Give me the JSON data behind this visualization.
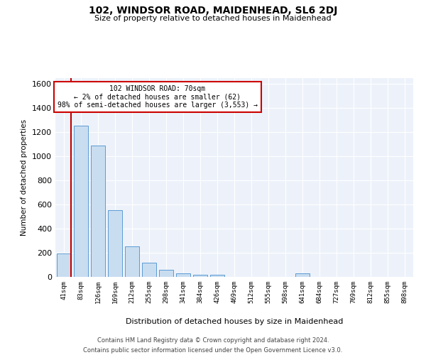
{
  "title": "102, WINDSOR ROAD, MAIDENHEAD, SL6 2DJ",
  "subtitle": "Size of property relative to detached houses in Maidenhead",
  "xlabel": "Distribution of detached houses by size in Maidenhead",
  "ylabel": "Number of detached properties",
  "footer_line1": "Contains HM Land Registry data © Crown copyright and database right 2024.",
  "footer_line2": "Contains public sector information licensed under the Open Government Licence v3.0.",
  "annotation_line1": "102 WINDSOR ROAD: 70sqm",
  "annotation_line2": "← 2% of detached houses are smaller (62)",
  "annotation_line3": "98% of semi-detached houses are larger (3,553) →",
  "bar_color": "#c9ddf0",
  "bar_edge_color": "#5b9bd5",
  "marker_line_color": "#c00000",
  "background_color": "#edf2fa",
  "grid_color": "#ffffff",
  "annotation_box_color": "#cc0000",
  "categories": [
    "41sqm",
    "83sqm",
    "126sqm",
    "169sqm",
    "212sqm",
    "255sqm",
    "298sqm",
    "341sqm",
    "384sqm",
    "426sqm",
    "469sqm",
    "512sqm",
    "555sqm",
    "598sqm",
    "641sqm",
    "684sqm",
    "727sqm",
    "769sqm",
    "812sqm",
    "855sqm",
    "898sqm"
  ],
  "values": [
    195,
    1255,
    1090,
    555,
    255,
    120,
    60,
    30,
    20,
    15,
    0,
    0,
    0,
    0,
    30,
    0,
    0,
    0,
    0,
    0,
    0
  ],
  "ylim": [
    0,
    1650
  ],
  "yticks": [
    0,
    200,
    400,
    600,
    800,
    1000,
    1200,
    1400,
    1600
  ],
  "figsize": [
    6.0,
    5.0
  ],
  "dpi": 100
}
